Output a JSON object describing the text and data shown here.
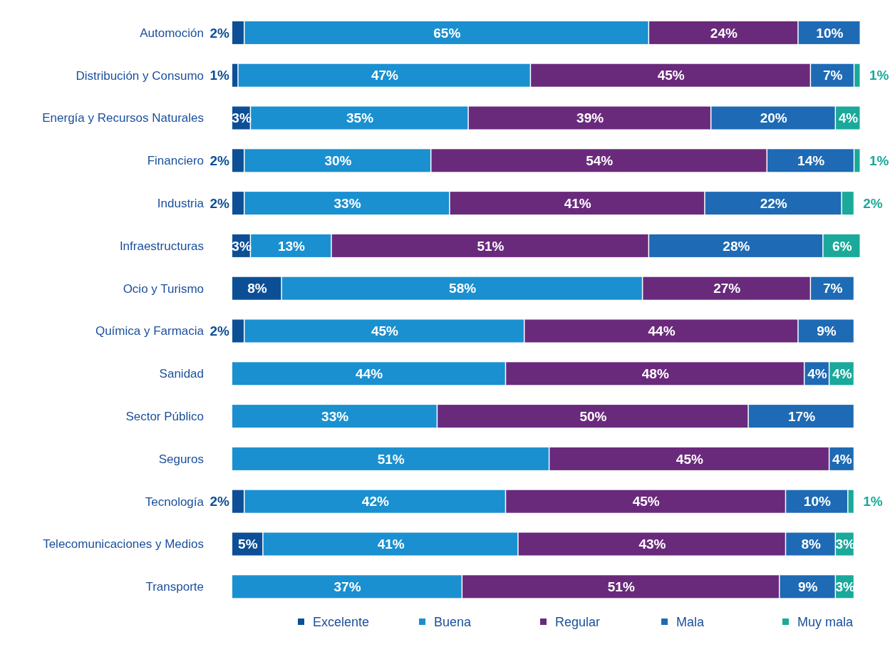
{
  "chart_data": {
    "type": "bar",
    "orientation": "horizontal",
    "stacked": true,
    "legend": "bottom",
    "categories": [
      "Automoción",
      "Distribución y Consumo",
      "Energía y Recursos Naturales",
      "Financiero",
      "Industria",
      "Infraestructuras",
      "Ocio y Turismo",
      "Química y Farmacia",
      "Sanidad",
      "Sector Público",
      "Seguros",
      "Tecnología",
      "Telecomunicaciones y Medios",
      "Transporte"
    ],
    "series": [
      {
        "name": "Excelente",
        "color": "#0d4f96",
        "values": [
          2,
          1,
          3,
          2,
          2,
          3,
          8,
          2,
          null,
          null,
          null,
          2,
          5,
          null
        ],
        "value_labels": [
          "2%",
          "1%",
          "3%",
          "2%",
          "2%",
          "3%",
          "8%",
          "2%",
          null,
          null,
          null,
          "2%",
          "5%",
          null
        ]
      },
      {
        "name": "Buena",
        "color": "#1a90d0",
        "values": [
          65,
          47,
          35,
          30,
          33,
          13,
          58,
          45,
          44,
          33,
          51,
          42,
          41,
          37
        ],
        "value_labels": [
          "65%",
          "47%",
          "35%",
          "30%",
          "33%",
          "13%",
          "58%",
          "45%",
          "44%",
          "33%",
          "51%",
          "42%",
          "41%",
          "37%"
        ]
      },
      {
        "name": "Regular",
        "color": "#6a2a7c",
        "values": [
          24,
          45,
          39,
          54,
          41,
          51,
          27,
          44,
          48,
          50,
          45,
          45,
          43,
          51
        ],
        "value_labels": [
          "24%",
          "45%",
          "39%",
          "54%",
          "41%",
          "51%",
          "27%",
          "44%",
          "48%",
          "50%",
          "45%",
          "45%",
          "43%",
          "51%"
        ]
      },
      {
        "name": "Mala",
        "color": "#1e6ab4",
        "values": [
          10,
          7,
          20,
          14,
          22,
          28,
          7,
          9,
          4,
          17,
          4,
          10,
          8,
          9
        ],
        "value_labels": [
          "10%",
          "7%",
          "20%",
          "14%",
          "22%",
          "28%",
          "7%",
          "9%",
          "4%",
          "17%",
          "4%",
          "10%",
          "8%",
          "9%"
        ]
      },
      {
        "name": "Muy mala",
        "color": "#1aa99a",
        "values": [
          null,
          1,
          4,
          1,
          2,
          6,
          null,
          null,
          4,
          null,
          null,
          1,
          3,
          3
        ],
        "value_labels": [
          null,
          "1%",
          "4%",
          "1%",
          "2%",
          "6%",
          null,
          null,
          "4%",
          null,
          null,
          "1%",
          "3%",
          "3%"
        ]
      }
    ]
  }
}
